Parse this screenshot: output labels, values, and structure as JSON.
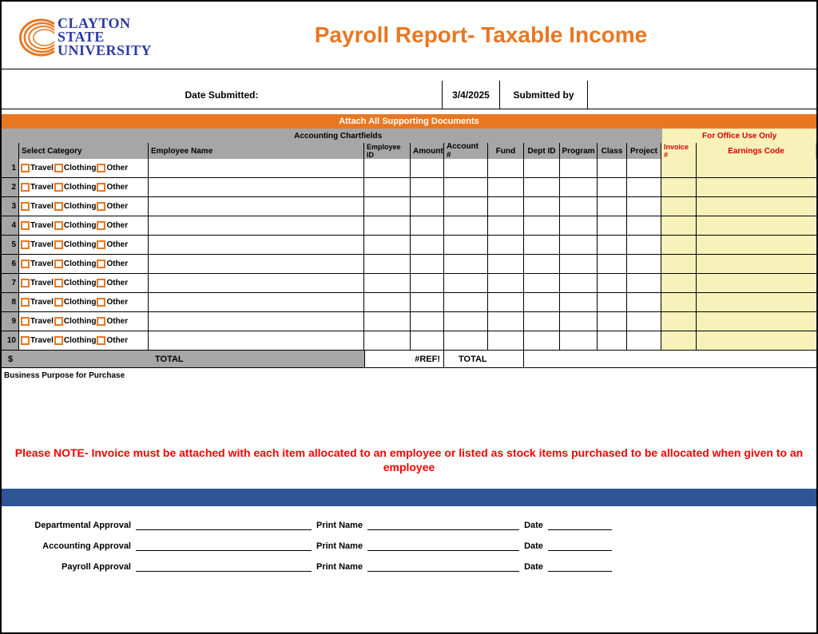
{
  "logo": {
    "line1": "CLAYTON STATE",
    "line2": "UNIVERSITY",
    "text_color": "#2c3aa5",
    "arc_color": "#e87722"
  },
  "title": "Payroll Report- Taxable Income",
  "title_color": "#e87722",
  "date_row": {
    "label": "Date Submitted:",
    "value": "3/4/2025",
    "submitted_label": "Submitted by",
    "submitted_value": ""
  },
  "attach_banner": "Attach All Supporting Documents",
  "section_headers": {
    "left": "Accounting Chartfields",
    "right": "For Office Use Only"
  },
  "columns": {
    "select_category": "Select Category",
    "employee_name": "Employee Name",
    "employee_id": "Employee ID",
    "amount": "Amount",
    "account": "Account #",
    "fund": "Fund",
    "dept_id": "Dept ID",
    "program": "Program",
    "class": "Class",
    "project": "Project",
    "invoice": "Invoice #",
    "earnings_code": "Earnings Code"
  },
  "category_options": {
    "opt1": "Travel",
    "opt2": "Clothing",
    "opt3": "Other"
  },
  "rows": [
    {
      "num": "1"
    },
    {
      "num": "2"
    },
    {
      "num": "3"
    },
    {
      "num": "4"
    },
    {
      "num": "5"
    },
    {
      "num": "6"
    },
    {
      "num": "7"
    },
    {
      "num": "8"
    },
    {
      "num": "9"
    },
    {
      "num": "10"
    }
  ],
  "totals": {
    "dollar": "$",
    "total_label": "TOTAL",
    "ref_error": "#REF!",
    "total_label2": "TOTAL"
  },
  "business_purpose_label": "Business Purpose for Purchase",
  "note_text": "Please NOTE- Invoice must be attached with each item allocated to an employee or listed as stock items purchased to be allocated when given to an employee",
  "signatures": {
    "dept": "Departmental Approval",
    "acct": "Accounting Approval",
    "payroll": "Payroll Approval",
    "print_name": "Print Name",
    "date": "Date"
  },
  "colors": {
    "orange": "#e87722",
    "gray": "#a6a6a6",
    "yellow": "#f7f2b9",
    "red": "#d80000",
    "note_red": "#ff0000",
    "blue_bar": "#2f5597"
  }
}
